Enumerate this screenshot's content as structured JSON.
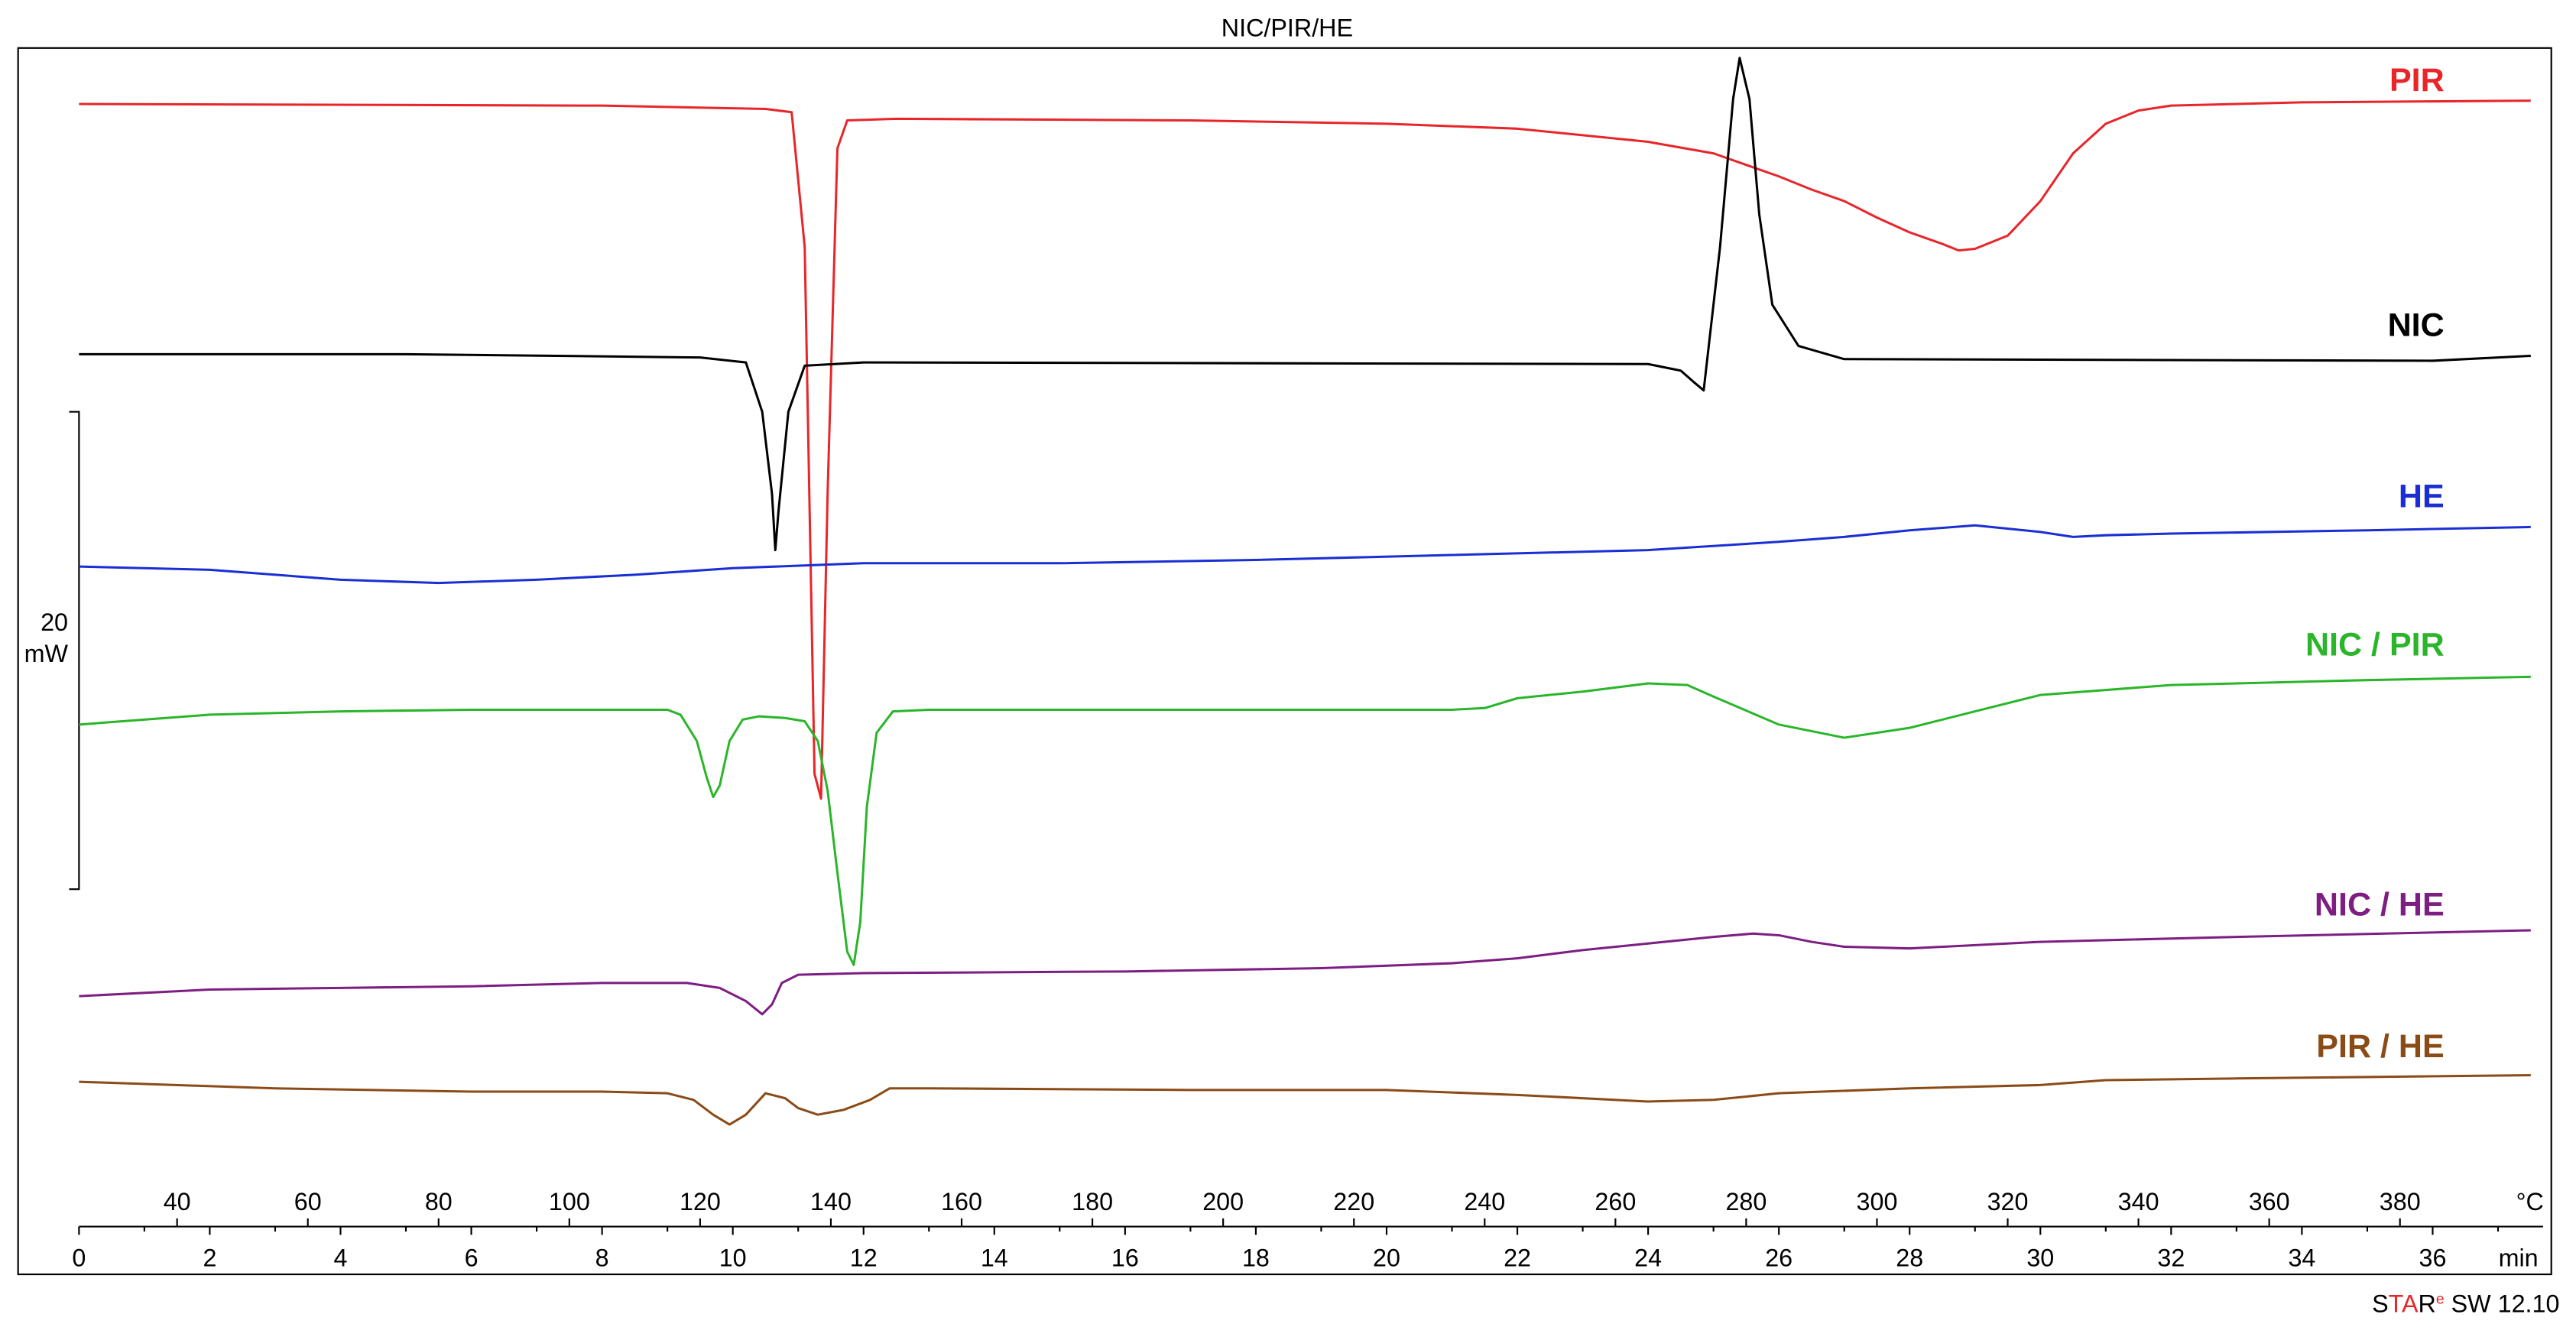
{
  "chart_data": {
    "type": "line",
    "title": "NIC/PIR/HE",
    "x_time": {
      "unit": "min",
      "range": [
        0,
        37.5
      ],
      "ticks": [
        "0",
        "2",
        "4",
        "6",
        "8",
        "10",
        "12",
        "14",
        "16",
        "18",
        "20",
        "22",
        "24",
        "26",
        "28",
        "30",
        "32",
        "34",
        "36"
      ]
    },
    "x_temp": {
      "unit": "°C",
      "range": [
        25,
        400
      ],
      "ticks": [
        "40",
        "60",
        "80",
        "100",
        "120",
        "140",
        "160",
        "180",
        "200",
        "220",
        "240",
        "260",
        "280",
        "300",
        "320",
        "340",
        "360",
        "380"
      ]
    },
    "scale_bar": {
      "value": "20",
      "unit": "mW"
    },
    "grid": false,
    "series": [
      {
        "name": "PIR",
        "color": "#e8262a",
        "points": [
          [
            0,
            63
          ],
          [
            8,
            64
          ],
          [
            10.5,
            66
          ],
          [
            10.9,
            68
          ],
          [
            11.1,
            150
          ],
          [
            11.25,
            470
          ],
          [
            11.35,
            485
          ],
          [
            11.45,
            300
          ],
          [
            11.6,
            90
          ],
          [
            11.75,
            73
          ],
          [
            12.5,
            72
          ],
          [
            17,
            73
          ],
          [
            20,
            75
          ],
          [
            22,
            78
          ],
          [
            24,
            86
          ],
          [
            25,
            93
          ],
          [
            26,
            107
          ],
          [
            26.5,
            115
          ],
          [
            27,
            122
          ],
          [
            27.5,
            132
          ],
          [
            28,
            141
          ],
          [
            28.5,
            148
          ],
          [
            28.75,
            152
          ],
          [
            29,
            151
          ],
          [
            29.5,
            143
          ],
          [
            30,
            122
          ],
          [
            30.5,
            93
          ],
          [
            31,
            75
          ],
          [
            31.5,
            67
          ],
          [
            32,
            64
          ],
          [
            34,
            62
          ],
          [
            37.5,
            61
          ]
        ]
      },
      {
        "name": "NIC",
        "color": "#000000",
        "points": [
          [
            0,
            215
          ],
          [
            5,
            215
          ],
          [
            9.5,
            217
          ],
          [
            10.2,
            220
          ],
          [
            10.45,
            250
          ],
          [
            10.6,
            300
          ],
          [
            10.65,
            334
          ],
          [
            10.7,
            310
          ],
          [
            10.85,
            250
          ],
          [
            11.1,
            222
          ],
          [
            12,
            220
          ],
          [
            24,
            221
          ],
          [
            24.5,
            225
          ],
          [
            24.7,
            232
          ],
          [
            24.85,
            237
          ],
          [
            25.1,
            150
          ],
          [
            25.3,
            60
          ],
          [
            25.4,
            35
          ],
          [
            25.55,
            60
          ],
          [
            25.7,
            130
          ],
          [
            25.9,
            185
          ],
          [
            26.3,
            210
          ],
          [
            27,
            218
          ],
          [
            36,
            219
          ],
          [
            37.5,
            216
          ]
        ]
      },
      {
        "name": "HE",
        "color": "#1a2ed4",
        "points": [
          [
            0,
            344
          ],
          [
            2,
            346
          ],
          [
            4,
            352
          ],
          [
            5.5,
            354
          ],
          [
            7,
            352
          ],
          [
            8.5,
            349
          ],
          [
            10,
            345
          ],
          [
            12,
            342
          ],
          [
            15,
            342
          ],
          [
            18,
            340
          ],
          [
            21,
            337
          ],
          [
            24,
            334
          ],
          [
            26,
            329
          ],
          [
            27,
            326
          ],
          [
            28,
            322
          ],
          [
            29,
            319
          ],
          [
            30,
            323
          ],
          [
            30.5,
            326
          ],
          [
            31,
            325
          ],
          [
            32,
            324
          ],
          [
            35,
            322
          ],
          [
            37.5,
            320
          ]
        ]
      },
      {
        "name": "NIC / PIR",
        "color": "#2ab52a",
        "points": [
          [
            0,
            440
          ],
          [
            2,
            434
          ],
          [
            4,
            432
          ],
          [
            6,
            431
          ],
          [
            9,
            431
          ],
          [
            9.2,
            434
          ],
          [
            9.45,
            450
          ],
          [
            9.6,
            472
          ],
          [
            9.7,
            484
          ],
          [
            9.8,
            477
          ],
          [
            9.95,
            450
          ],
          [
            10.15,
            437
          ],
          [
            10.4,
            435
          ],
          [
            10.8,
            436
          ],
          [
            11.1,
            438
          ],
          [
            11.3,
            450
          ],
          [
            11.45,
            480
          ],
          [
            11.6,
            530
          ],
          [
            11.75,
            578
          ],
          [
            11.85,
            586
          ],
          [
            11.95,
            560
          ],
          [
            12.05,
            490
          ],
          [
            12.2,
            445
          ],
          [
            12.45,
            432
          ],
          [
            13,
            431
          ],
          [
            18,
            431
          ],
          [
            21,
            431
          ],
          [
            21.5,
            430
          ],
          [
            22,
            424
          ],
          [
            23,
            420
          ],
          [
            24,
            415
          ],
          [
            24.6,
            416
          ],
          [
            25,
            423
          ],
          [
            26,
            440
          ],
          [
            27,
            448
          ],
          [
            28,
            442
          ],
          [
            29,
            432
          ],
          [
            30,
            422
          ],
          [
            32,
            416
          ],
          [
            35,
            413
          ],
          [
            37.5,
            411
          ]
        ]
      },
      {
        "name": "NIC / HE",
        "color": "#7d1e82",
        "points": [
          [
            0,
            605
          ],
          [
            2,
            601
          ],
          [
            4,
            600
          ],
          [
            6,
            599
          ],
          [
            8,
            597
          ],
          [
            9.3,
            597
          ],
          [
            9.8,
            600
          ],
          [
            10.2,
            608
          ],
          [
            10.45,
            616
          ],
          [
            10.6,
            610
          ],
          [
            10.75,
            597
          ],
          [
            11,
            592
          ],
          [
            12,
            591
          ],
          [
            16,
            590
          ],
          [
            19,
            588
          ],
          [
            21,
            585
          ],
          [
            22,
            582
          ],
          [
            23,
            577
          ],
          [
            24,
            573
          ],
          [
            25,
            569
          ],
          [
            25.6,
            567
          ],
          [
            26,
            568
          ],
          [
            26.5,
            572
          ],
          [
            27,
            575
          ],
          [
            28,
            576
          ],
          [
            30,
            572
          ],
          [
            33,
            569
          ],
          [
            37.5,
            565
          ]
        ]
      },
      {
        "name": "PIR / HE",
        "color": "#8b4b17",
        "points": [
          [
            0,
            657
          ],
          [
            3,
            661
          ],
          [
            6,
            663
          ],
          [
            8,
            663
          ],
          [
            9,
            664
          ],
          [
            9.4,
            668
          ],
          [
            9.7,
            677
          ],
          [
            9.95,
            683
          ],
          [
            10.2,
            677
          ],
          [
            10.5,
            664
          ],
          [
            10.8,
            667
          ],
          [
            11,
            673
          ],
          [
            11.3,
            677
          ],
          [
            11.7,
            674
          ],
          [
            12.1,
            668
          ],
          [
            12.4,
            661
          ],
          [
            13,
            661
          ],
          [
            17,
            662
          ],
          [
            20,
            662
          ],
          [
            22,
            665
          ],
          [
            24,
            669
          ],
          [
            25,
            668
          ],
          [
            26,
            664
          ],
          [
            28,
            661
          ],
          [
            30,
            659
          ],
          [
            31,
            656
          ],
          [
            33,
            655
          ],
          [
            37.5,
            653
          ]
        ]
      }
    ],
    "labels_right": true
  },
  "branding": {
    "text_prefix": "S",
    "text_accent": "TA",
    "text_suffix": "R",
    "reg": "e",
    "version": " SW 12.10"
  }
}
